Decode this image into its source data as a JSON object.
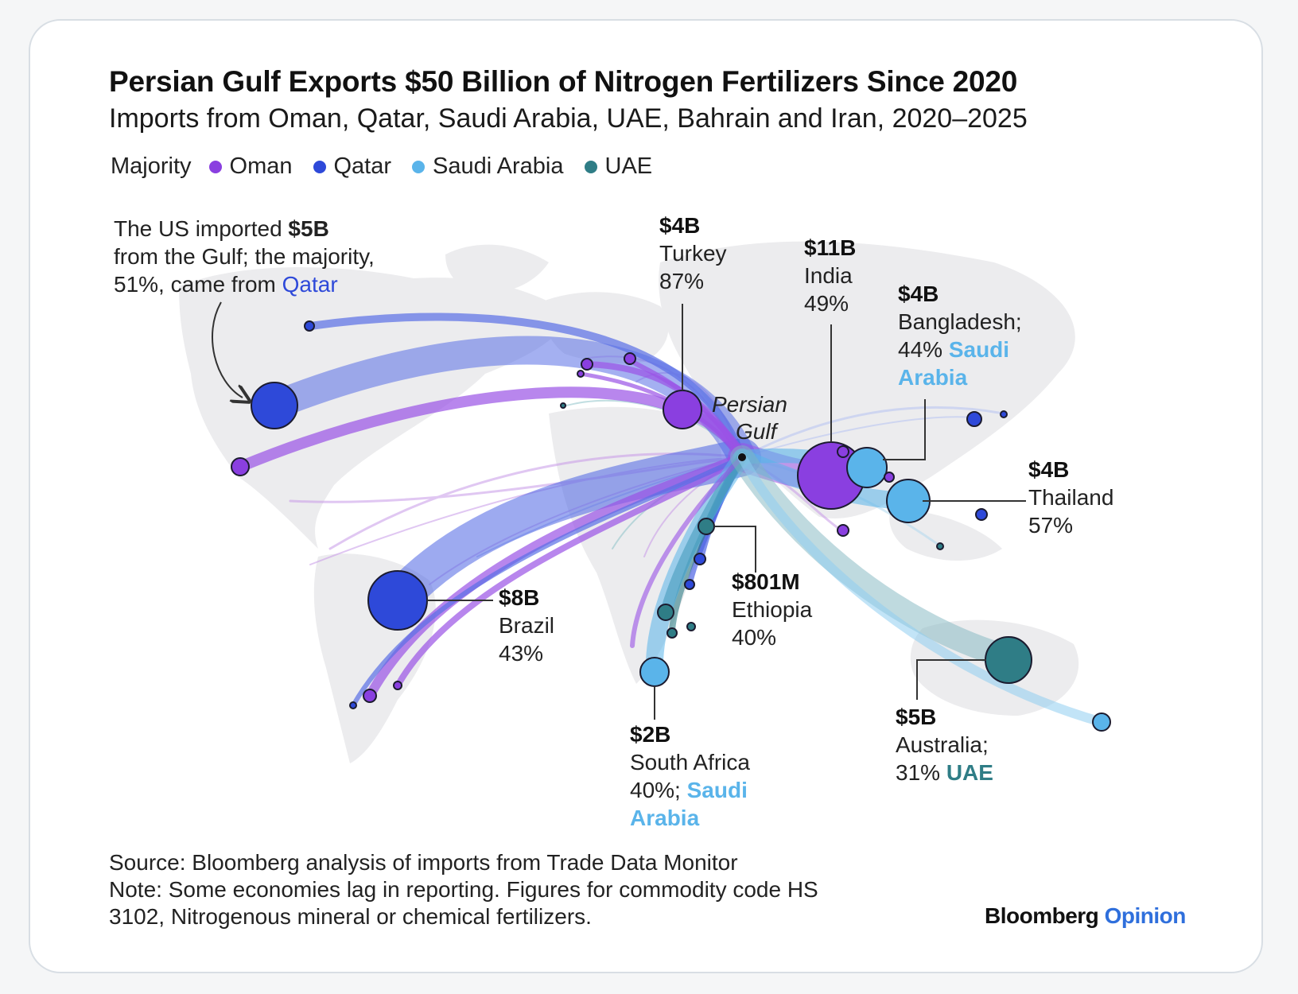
{
  "chart_data": {
    "type": "flow-map",
    "title": "Persian Gulf Exports $50 Billion of Nitrogen Fertilizers Since 2020",
    "subtitle": "Imports from Oman, Qatar, Saudi Arabia, UAE, Bahrain and Iran, 2020–2025",
    "legend": {
      "title": "Majority",
      "items": [
        {
          "name": "Oman",
          "color": "#8a3fe0"
        },
        {
          "name": "Qatar",
          "color": "#2e49d9"
        },
        {
          "name": "Saudi Arabia",
          "color": "#5ab4ea"
        },
        {
          "name": "UAE",
          "color": "#2f7d86"
        }
      ]
    },
    "origin": {
      "label_line1": "Persian",
      "label_line2": "Gulf"
    },
    "annotation": {
      "line1_pre": "The US imported ",
      "line1_value": "$5B",
      "line2": "from the Gulf; the majority,",
      "line3_pre": "51%, came from ",
      "line3_country": "Qatar"
    },
    "labeled_points": [
      {
        "id": "turkey",
        "value": "$4B",
        "country": "Turkey",
        "share": "87%",
        "majority": "Oman"
      },
      {
        "id": "india",
        "value": "$11B",
        "country": "India",
        "share": "49%",
        "majority": "Oman"
      },
      {
        "id": "bangladesh",
        "value": "$4B",
        "country": "Bangladesh;",
        "share": "44%",
        "majority_line1": "Saudi",
        "majority_line2": "Arabia",
        "majority": "Saudi Arabia"
      },
      {
        "id": "thailand",
        "value": "$4B",
        "country": "Thailand",
        "share": "57%",
        "majority": "Saudi Arabia"
      },
      {
        "id": "brazil",
        "value": "$8B",
        "country": "Brazil",
        "share": "43%",
        "majority": "Qatar"
      },
      {
        "id": "ethiopia",
        "value": "$801M",
        "country": "Ethiopia",
        "share": "40%",
        "majority": "UAE"
      },
      {
        "id": "south_africa",
        "value": "$2B",
        "country": "South Africa",
        "share": "40%;",
        "majority_line1": "Saudi",
        "majority_line2": "Arabia",
        "majority": "Saudi Arabia"
      },
      {
        "id": "australia",
        "value": "$5B",
        "country": "Australia;",
        "share": "31%",
        "majority_line1": "UAE",
        "majority": "UAE"
      }
    ],
    "units": "USD, cumulative 2020–2025"
  },
  "footer": {
    "source": "Source: Bloomberg analysis of imports from Trade Data Monitor",
    "note_line1": "Note: Some economies lag in reporting. Figures for commodity code HS",
    "note_line2": "3102, Nitrogenous mineral or chemical fertilizers."
  },
  "brand": {
    "name": "Bloomberg",
    "suffix": "Opinion"
  }
}
